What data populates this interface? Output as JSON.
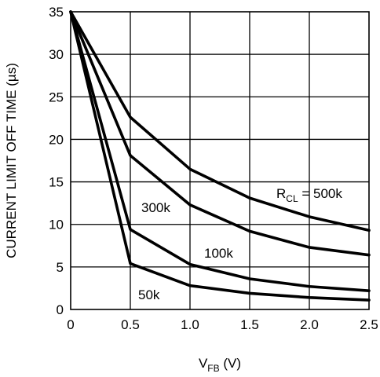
{
  "chart_data": {
    "type": "line",
    "title": "",
    "xlabel": {
      "main": "V",
      "sub": "FB",
      "suffix": " (V)"
    },
    "ylabel": "CURRENT LIMIT OFF TIME (µs)",
    "xlim": [
      0,
      2.5
    ],
    "ylim": [
      0,
      35
    ],
    "xticks": [
      0,
      0.5,
      1.0,
      1.5,
      2.0,
      2.5
    ],
    "xtick_labels": [
      "0",
      "0.5",
      "1.0",
      "1.5",
      "2.0",
      "2.5"
    ],
    "yticks": [
      0,
      5,
      10,
      15,
      20,
      25,
      30,
      35
    ],
    "ytick_labels": [
      "0",
      "5",
      "10",
      "15",
      "20",
      "25",
      "30",
      "35"
    ],
    "grid": true,
    "series": [
      {
        "id": "500k",
        "x": [
          0,
          0.5,
          1.0,
          1.5,
          2.0,
          2.5
        ],
        "y": [
          35,
          22.6,
          16.5,
          13.1,
          10.9,
          9.3
        ]
      },
      {
        "id": "300k",
        "x": [
          0,
          0.5,
          1.0,
          1.5,
          2.0,
          2.5
        ],
        "y": [
          35,
          18.1,
          12.3,
          9.2,
          7.3,
          6.4
        ]
      },
      {
        "id": "100k",
        "x": [
          0,
          0.5,
          1.0,
          1.5,
          2.0,
          2.5
        ],
        "y": [
          35,
          9.4,
          5.3,
          3.6,
          2.7,
          2.2
        ]
      },
      {
        "id": "50k",
        "x": [
          0,
          0.5,
          1.0,
          1.5,
          2.0,
          2.5
        ],
        "y": [
          35,
          5.4,
          2.8,
          1.9,
          1.4,
          1.1
        ]
      }
    ],
    "annotations": [
      {
        "id": "rcl-500k",
        "main": "R",
        "sub": "CL",
        "suffix": " = 500k"
      },
      {
        "id": "300k",
        "text": "300k"
      },
      {
        "id": "100k",
        "text": "100k"
      },
      {
        "id": "50k",
        "text": "50k"
      }
    ]
  }
}
